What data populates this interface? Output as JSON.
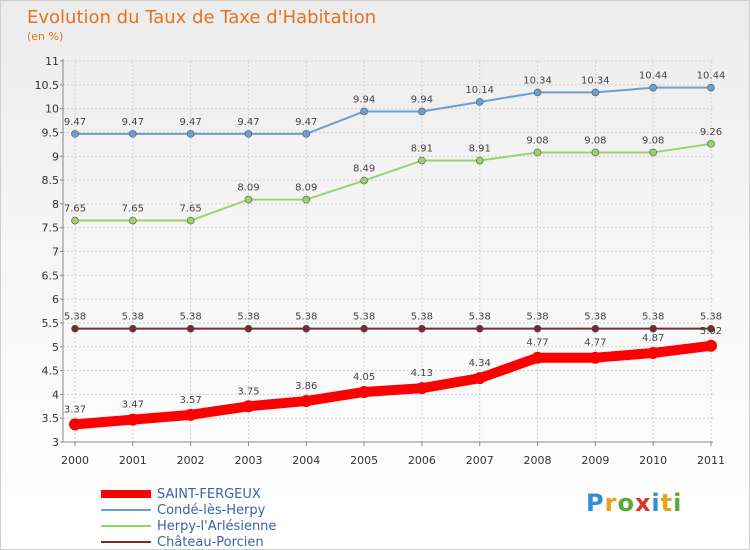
{
  "title": "Evolution du Taux de Taxe d'Habitation",
  "subtitle": "(en %)",
  "logo": {
    "text": "Proxiti",
    "colors": [
      "#2f8fd6",
      "#e8a11a",
      "#5aab2e",
      "#d9352b",
      "#2f8fd6",
      "#e8a11a",
      "#5aab2e"
    ]
  },
  "chart_data": {
    "type": "line",
    "title": "Evolution du Taux de Taxe d'Habitation",
    "subtitle": "(en %)",
    "xlabel": "",
    "ylabel": "",
    "ylim": [
      3,
      11
    ],
    "yticks": [
      "3",
      "3.5",
      "4",
      "4.5",
      "5",
      "5.5",
      "6",
      "6.5",
      "7",
      "7.5",
      "8",
      "8.5",
      "9",
      "9.5",
      "10",
      "10.5",
      "11"
    ],
    "categories": [
      "2000",
      "2001",
      "2002",
      "2003",
      "2004",
      "2005",
      "2006",
      "2007",
      "2008",
      "2009",
      "2010",
      "2011"
    ],
    "grid": true,
    "legend_position": "bottom-left",
    "series": [
      {
        "name": "SAINT-FERGEUX",
        "color": "#ff0000",
        "values": [
          3.37,
          3.47,
          3.57,
          3.75,
          3.86,
          4.05,
          4.13,
          4.34,
          4.77,
          4.77,
          4.87,
          5.02
        ],
        "labels": [
          "3.37",
          "3.47",
          "3.57",
          "3.75",
          "3.86",
          "4.05",
          "4.13",
          "4.34",
          "4.77",
          "4.77",
          "4.87",
          "5.02"
        ]
      },
      {
        "name": "Condé-lès-Herpy",
        "color": "#6a9fd0",
        "values": [
          9.47,
          9.47,
          9.47,
          9.47,
          9.47,
          9.94,
          9.94,
          10.14,
          10.34,
          10.34,
          10.44,
          10.44
        ],
        "labels": [
          "9.47",
          "9.47",
          "9.47",
          "9.47",
          "9.47",
          "9.94",
          "9.94",
          "10.14",
          "10.34",
          "10.34",
          "10.44",
          "10.44"
        ]
      },
      {
        "name": "Herpy-l'Arlésienne",
        "color": "#9bd36a",
        "values": [
          7.65,
          7.65,
          7.65,
          8.09,
          8.09,
          8.49,
          8.91,
          8.91,
          9.08,
          9.08,
          9.08,
          9.26
        ],
        "labels": [
          "7.65",
          "7.65",
          "7.65",
          "8.09",
          "8.09",
          "8.49",
          "8.91",
          "8.91",
          "9.08",
          "9.08",
          "9.08",
          "9.26"
        ]
      },
      {
        "name": "Château-Porcien",
        "color": "#7a2a2a",
        "values": [
          5.38,
          5.38,
          5.38,
          5.38,
          5.38,
          5.38,
          5.38,
          5.38,
          5.38,
          5.38,
          5.38,
          5.38
        ],
        "labels": [
          "5.38",
          "5.38",
          "5.38",
          "5.38",
          "5.38",
          "5.38",
          "5.38",
          "5.38",
          "5.38",
          "5.38",
          "5.38",
          "5.38"
        ]
      }
    ]
  }
}
